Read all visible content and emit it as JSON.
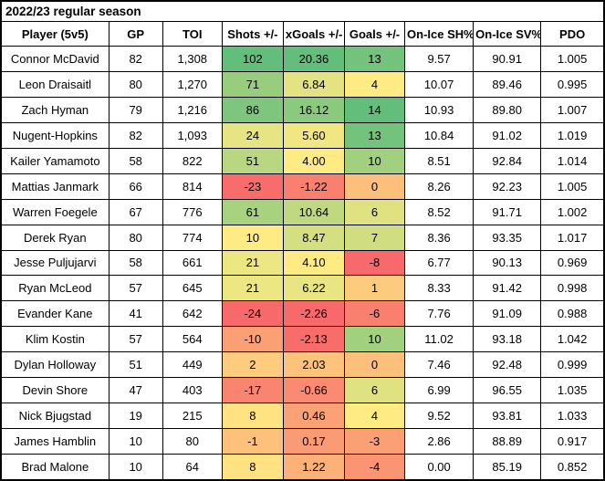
{
  "colors": {
    "header_bg": "#d9d9d9",
    "border": "#000000",
    "scale_low": "#f8696b",
    "scale_mid": "#ffeb84",
    "scale_high": "#63be7b"
  },
  "chart_data": {
    "type": "table",
    "title": "2022/23 regular season",
    "legend_position": "none",
    "columns": [
      {
        "key": "player",
        "label": "Player (5v5)"
      },
      {
        "key": "gp",
        "label": "GP"
      },
      {
        "key": "toi",
        "label": "TOI"
      },
      {
        "key": "shots",
        "label": "Shots +/-",
        "heatmap": {
          "min": -24,
          "mid": 10,
          "max": 102
        }
      },
      {
        "key": "xgoals",
        "label": "xGoals +/-",
        "heatmap": {
          "min": -2.26,
          "mid": 4.0,
          "max": 20.36
        }
      },
      {
        "key": "goals",
        "label": "Goals +/-",
        "heatmap": {
          "min": -8,
          "mid": 4,
          "max": 14
        }
      },
      {
        "key": "shpct",
        "label": "On-Ice SH%"
      },
      {
        "key": "svpct",
        "label": "On-Ice SV%"
      },
      {
        "key": "pdo",
        "label": "PDO"
      }
    ],
    "rows": [
      {
        "player": "Connor McDavid",
        "gp": "82",
        "toi": "1,308",
        "shots": "102",
        "xgoals": "20.36",
        "goals": "13",
        "shpct": "9.57",
        "svpct": "90.91",
        "pdo": "1.005"
      },
      {
        "player": "Leon Draisaitl",
        "gp": "80",
        "toi": "1,270",
        "shots": "71",
        "xgoals": "6.84",
        "goals": "4",
        "shpct": "10.07",
        "svpct": "89.46",
        "pdo": "0.995"
      },
      {
        "player": "Zach Hyman",
        "gp": "79",
        "toi": "1,216",
        "shots": "86",
        "xgoals": "16.12",
        "goals": "14",
        "shpct": "10.93",
        "svpct": "89.80",
        "pdo": "1.007"
      },
      {
        "player": "Nugent-Hopkins",
        "gp": "82",
        "toi": "1,093",
        "shots": "24",
        "xgoals": "5.60",
        "goals": "13",
        "shpct": "10.84",
        "svpct": "91.02",
        "pdo": "1.019"
      },
      {
        "player": "Kailer Yamamoto",
        "gp": "58",
        "toi": "822",
        "shots": "51",
        "xgoals": "4.00",
        "goals": "10",
        "shpct": "8.51",
        "svpct": "92.84",
        "pdo": "1.014"
      },
      {
        "player": "Mattias Janmark",
        "gp": "66",
        "toi": "814",
        "shots": "-23",
        "xgoals": "-1.22",
        "goals": "0",
        "shpct": "8.26",
        "svpct": "92.23",
        "pdo": "1.005"
      },
      {
        "player": "Warren Foegele",
        "gp": "67",
        "toi": "776",
        "shots": "61",
        "xgoals": "10.64",
        "goals": "6",
        "shpct": "8.52",
        "svpct": "91.71",
        "pdo": "1.002"
      },
      {
        "player": "Derek Ryan",
        "gp": "80",
        "toi": "774",
        "shots": "10",
        "xgoals": "8.47",
        "goals": "7",
        "shpct": "8.36",
        "svpct": "93.35",
        "pdo": "1.017"
      },
      {
        "player": "Jesse Puljujarvi",
        "gp": "58",
        "toi": "661",
        "shots": "21",
        "xgoals": "4.10",
        "goals": "-8",
        "shpct": "6.77",
        "svpct": "90.13",
        "pdo": "0.969"
      },
      {
        "player": "Ryan McLeod",
        "gp": "57",
        "toi": "645",
        "shots": "21",
        "xgoals": "6.22",
        "goals": "1",
        "shpct": "8.33",
        "svpct": "91.42",
        "pdo": "0.998"
      },
      {
        "player": "Evander Kane",
        "gp": "41",
        "toi": "642",
        "shots": "-24",
        "xgoals": "-2.26",
        "goals": "-6",
        "shpct": "7.76",
        "svpct": "91.09",
        "pdo": "0.988"
      },
      {
        "player": "Klim Kostin",
        "gp": "57",
        "toi": "564",
        "shots": "-10",
        "xgoals": "-2.13",
        "goals": "10",
        "shpct": "11.02",
        "svpct": "93.18",
        "pdo": "1.042"
      },
      {
        "player": "Dylan Holloway",
        "gp": "51",
        "toi": "449",
        "shots": "2",
        "xgoals": "2.03",
        "goals": "0",
        "shpct": "7.46",
        "svpct": "92.48",
        "pdo": "0.999"
      },
      {
        "player": "Devin Shore",
        "gp": "47",
        "toi": "403",
        "shots": "-17",
        "xgoals": "-0.66",
        "goals": "6",
        "shpct": "6.99",
        "svpct": "96.55",
        "pdo": "1.035"
      },
      {
        "player": "Nick Bjugstad",
        "gp": "19",
        "toi": "215",
        "shots": "8",
        "xgoals": "0.46",
        "goals": "4",
        "shpct": "9.52",
        "svpct": "93.81",
        "pdo": "1.033"
      },
      {
        "player": "James Hamblin",
        "gp": "10",
        "toi": "80",
        "shots": "-1",
        "xgoals": "0.17",
        "goals": "-3",
        "shpct": "2.86",
        "svpct": "88.89",
        "pdo": "0.917"
      },
      {
        "player": "Brad Malone",
        "gp": "10",
        "toi": "64",
        "shots": "8",
        "xgoals": "1.22",
        "goals": "-4",
        "shpct": "0.00",
        "svpct": "85.19",
        "pdo": "0.852"
      }
    ]
  }
}
